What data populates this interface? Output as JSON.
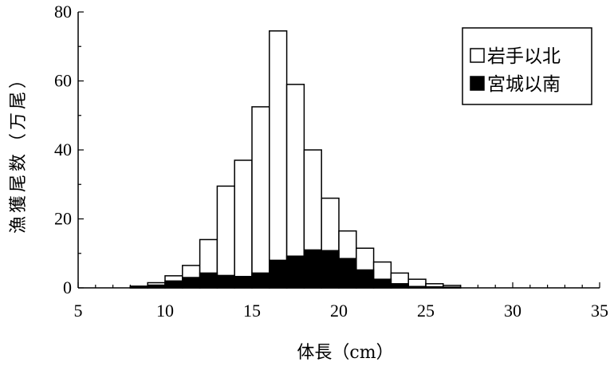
{
  "chart_data": {
    "type": "bar",
    "stacked": "overlay",
    "xlabel": "体長（cm）",
    "ylabel": "漁獲尾数（万尾）",
    "xlim": [
      5,
      35
    ],
    "ylim": [
      0,
      80
    ],
    "xticks": [
      5,
      10,
      15,
      20,
      25,
      30,
      35
    ],
    "yticks": [
      0,
      20,
      40,
      60,
      80
    ],
    "bin_width": 1,
    "x": [
      8,
      9,
      10,
      11,
      12,
      13,
      14,
      15,
      16,
      17,
      18,
      19,
      20,
      21,
      22,
      23,
      24,
      25,
      26
    ],
    "series": [
      {
        "name": "岩手以北",
        "fill": "#ffffff",
        "values": [
          0.5,
          1.5,
          3.5,
          6.5,
          14,
          29.5,
          37,
          52.5,
          74.5,
          59,
          40,
          26,
          16.5,
          11.5,
          7.5,
          4.3,
          2.5,
          1.2,
          0.7
        ]
      },
      {
        "name": "宮城以南",
        "fill": "#000000",
        "values": [
          0.3,
          0.8,
          2,
          3,
          4.3,
          3.6,
          3.3,
          4.3,
          8,
          9.2,
          11,
          10.8,
          8.5,
          5.2,
          2.5,
          1.2,
          0.4,
          0.3,
          0.2
        ]
      }
    ],
    "legend": {
      "position": "top-right"
    }
  }
}
